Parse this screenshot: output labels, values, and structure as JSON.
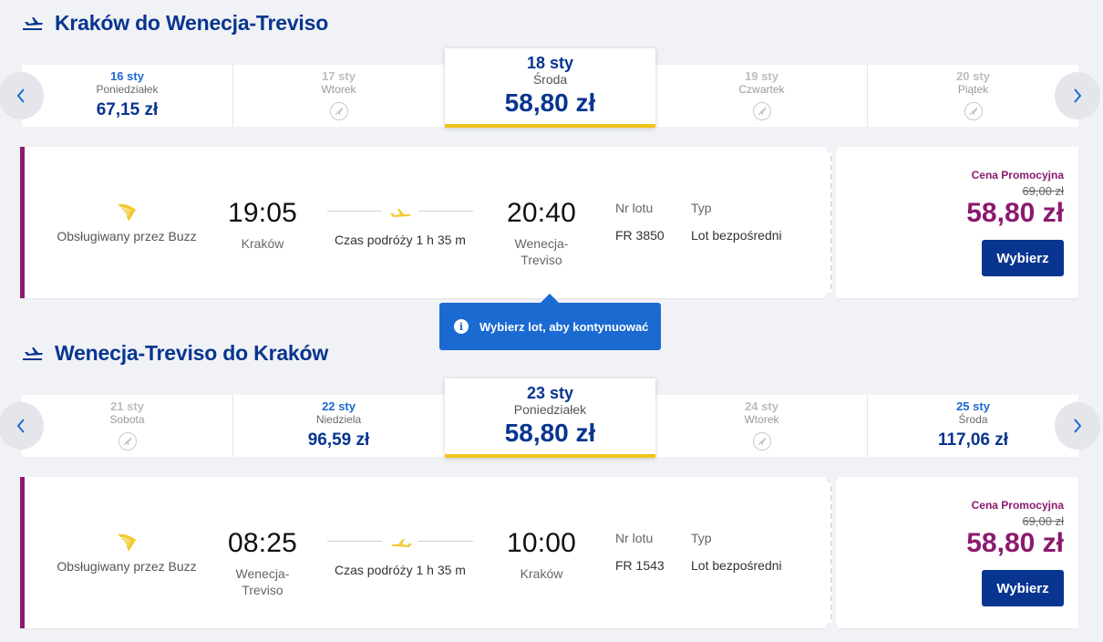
{
  "outbound": {
    "title": "Kraków do Wenecja-Treviso",
    "dates": [
      {
        "date": "16 sty",
        "weekday": "Poniedziałek",
        "price": "67,15 zł",
        "available": true
      },
      {
        "date": "17 sty",
        "weekday": "Wtorek",
        "price": "",
        "available": false
      },
      {
        "date": "18 sty",
        "weekday": "Środa",
        "price": "58,80 zł",
        "available": true,
        "selected": true
      },
      {
        "date": "19 sty",
        "weekday": "Czwartek",
        "price": "",
        "available": false
      },
      {
        "date": "20 sty",
        "weekday": "Piątek",
        "price": "",
        "available": false
      }
    ],
    "flight": {
      "operator": "Obsługiwany przez Buzz",
      "dep_time": "19:05",
      "dep_city": "Kraków",
      "duration": "Czas podróży 1 h 35 m",
      "arr_time": "20:40",
      "arr_city": "Wenecja-Treviso",
      "flight_no_label": "Nr lotu",
      "flight_no": "FR 3850",
      "type_label": "Typ",
      "type": "Lot bezpośredni",
      "promo_label": "Cena Promocyjna",
      "old_price": "69,00 zł",
      "price": "58,80 zł",
      "select_label": "Wybierz"
    }
  },
  "tooltip": {
    "text": "Wybierz lot, aby kontynuować",
    "icon": "info-icon"
  },
  "return": {
    "title": "Wenecja-Treviso do Kraków",
    "dates": [
      {
        "date": "21 sty",
        "weekday": "Sobota",
        "price": "",
        "available": false
      },
      {
        "date": "22 sty",
        "weekday": "Niedziela",
        "price": "96,59 zł",
        "available": true
      },
      {
        "date": "23 sty",
        "weekday": "Poniedziałek",
        "price": "58,80 zł",
        "available": true,
        "selected": true
      },
      {
        "date": "24 sty",
        "weekday": "Wtorek",
        "price": "",
        "available": false
      },
      {
        "date": "25 sty",
        "weekday": "Środa",
        "price": "117,06 zł",
        "available": true
      }
    ],
    "flight": {
      "operator": "Obsługiwany przez Buzz",
      "dep_time": "08:25",
      "dep_city": "Wenecja-Treviso",
      "duration": "Czas podróży 1 h 35 m",
      "arr_time": "10:00",
      "arr_city": "Kraków",
      "flight_no_label": "Nr lotu",
      "flight_no": "FR 1543",
      "type_label": "Typ",
      "type": "Lot bezpośredni",
      "promo_label": "Cena Promocyjna",
      "old_price": "69,00 zł",
      "price": "58,80 zł",
      "select_label": "Wybierz"
    }
  },
  "colors": {
    "brand_blue": "#073590",
    "link_blue": "#1b6ad1",
    "promo_purple": "#8b1a6e",
    "accent_yellow": "#f0c419"
  }
}
